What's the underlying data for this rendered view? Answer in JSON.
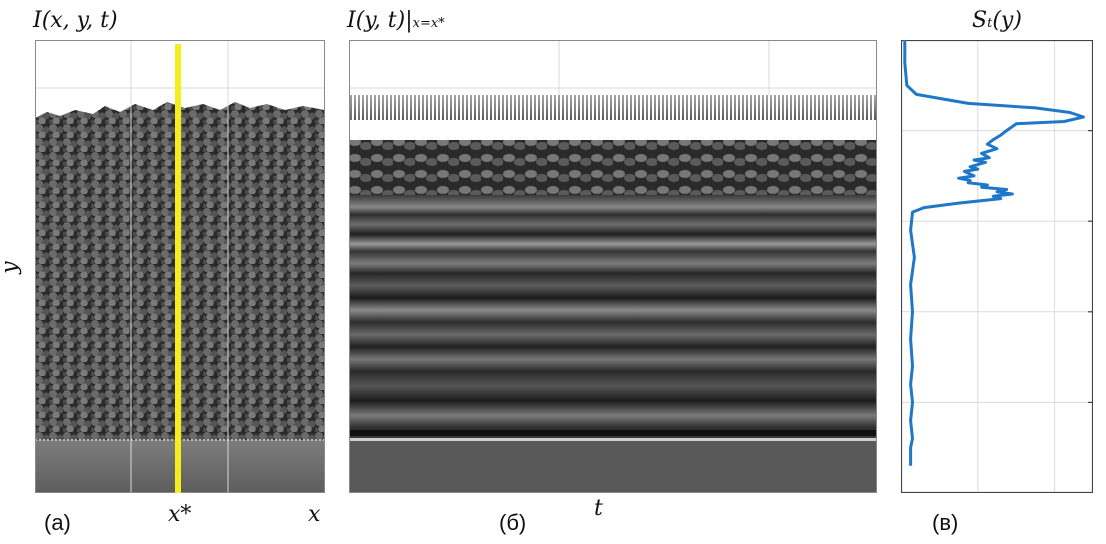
{
  "panels": {
    "a": {
      "title_main": "I(x, y, t)",
      "xlabel": "x",
      "ylabel": "y",
      "marker_label": "x*",
      "panel_label": "(а)",
      "marker_color": "#f4ee1e"
    },
    "b": {
      "title_main": "I(y, t)|",
      "title_sub": "x=x*",
      "xlabel": "t",
      "panel_label": "(б)"
    },
    "c": {
      "title_main": "S",
      "title_sub": "t",
      "title_tail": "(y)",
      "panel_label": "(в)",
      "line_color": "#1f77c9"
    }
  },
  "chart_data": {
    "type": "line",
    "title": "S_t(y)",
    "series": [
      {
        "values_x": [
          0.02,
          0.02,
          0.03,
          0.08,
          0.35,
          0.7,
          0.88,
          0.95,
          0.85,
          0.6,
          0.55,
          0.52,
          0.48,
          0.45,
          0.5,
          0.42,
          0.46,
          0.38,
          0.44,
          0.36,
          0.4,
          0.33,
          0.38,
          0.3,
          0.36,
          0.35,
          0.45,
          0.42,
          0.55,
          0.5,
          0.58,
          0.48,
          0.52,
          0.3,
          0.12,
          0.06,
          0.05,
          0.07,
          0.05,
          0.06,
          0.05,
          0.06,
          0.05,
          0.06,
          0.05,
          0.06,
          0.05,
          0.05,
          0.05
        ],
        "values_y": [
          1.0,
          0.95,
          0.9,
          0.88,
          0.86,
          0.85,
          0.84,
          0.83,
          0.82,
          0.815,
          0.8,
          0.79,
          0.78,
          0.77,
          0.76,
          0.75,
          0.74,
          0.735,
          0.73,
          0.72,
          0.715,
          0.71,
          0.7,
          0.695,
          0.69,
          0.685,
          0.68,
          0.675,
          0.67,
          0.665,
          0.66,
          0.655,
          0.65,
          0.64,
          0.63,
          0.62,
          0.58,
          0.52,
          0.46,
          0.4,
          0.34,
          0.28,
          0.24,
          0.2,
          0.16,
          0.12,
          0.1,
          0.08,
          0.06
        ]
      }
    ],
    "xlim": [
      0,
      1
    ],
    "ylim": [
      0,
      1
    ],
    "grid": true
  }
}
